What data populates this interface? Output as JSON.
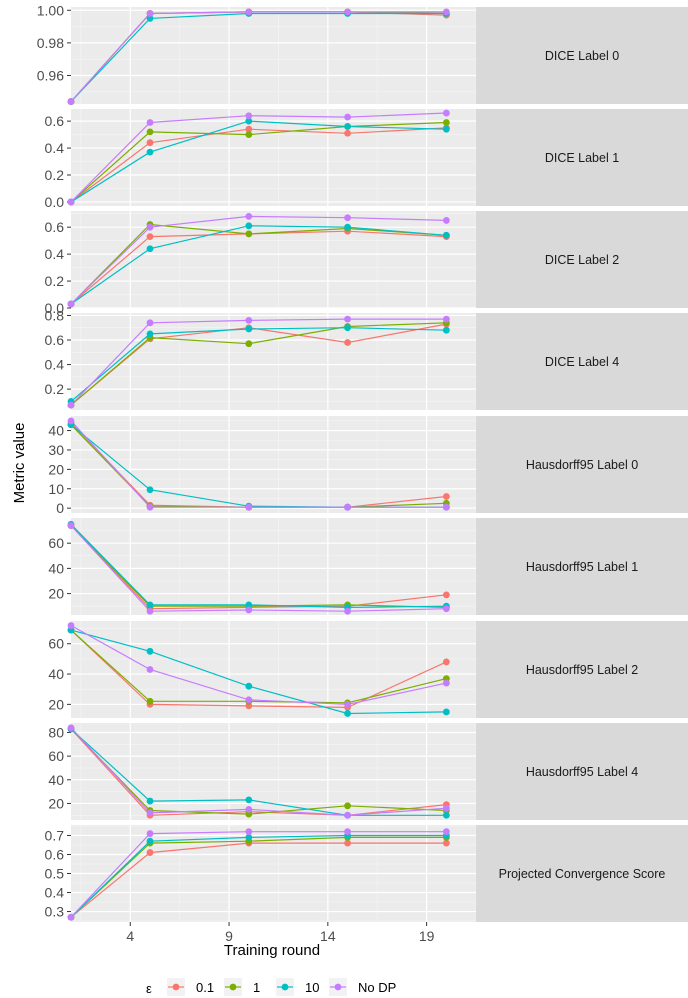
{
  "chart_data": {
    "type": "line",
    "x_label": "Training round",
    "y_label": "Metric value",
    "x_ticks": [
      4,
      9,
      14,
      19
    ],
    "x_range": [
      1.0,
      21.5
    ],
    "x": [
      1,
      5,
      10,
      15,
      20
    ],
    "legend": {
      "title": "ε",
      "position": "bottom",
      "entries": [
        {
          "label": "0.1",
          "color": "#F8766D"
        },
        {
          "label": "1",
          "color": "#7CAE00"
        },
        {
          "label": "10",
          "color": "#00BFC4"
        },
        {
          "label": "No DP",
          "color": "#C77CFF"
        }
      ]
    },
    "panels": [
      {
        "label": "DICE Label 0",
        "y_range": [
          0.9425,
          1.002
        ],
        "y_ticks": [
          0.96,
          0.98,
          1.0
        ],
        "y_tick_labels": [
          "0.96",
          "0.98",
          "1.00"
        ],
        "series": [
          {
            "name": "0.1",
            "values": [
              0.944,
              0.998,
              0.999,
              0.999,
              0.997
            ]
          },
          {
            "name": "1",
            "values": [
              0.944,
              0.998,
              0.999,
              0.999,
              0.998
            ]
          },
          {
            "name": "10",
            "values": [
              0.944,
              0.995,
              0.998,
              0.998,
              0.998
            ]
          },
          {
            "name": "No DP",
            "values": [
              0.944,
              0.998,
              0.999,
              0.999,
              0.999
            ]
          }
        ]
      },
      {
        "label": "DICE Label 1",
        "y_range": [
          -0.03,
          0.69
        ],
        "y_ticks": [
          0.0,
          0.2,
          0.4,
          0.6
        ],
        "y_tick_labels": [
          "0.0",
          "0.2",
          "0.4",
          "0.6"
        ],
        "series": [
          {
            "name": "0.1",
            "values": [
              0.0,
              0.44,
              0.54,
              0.51,
              0.55
            ]
          },
          {
            "name": "1",
            "values": [
              0.0,
              0.52,
              0.5,
              0.56,
              0.59
            ]
          },
          {
            "name": "10",
            "values": [
              0.0,
              0.37,
              0.6,
              0.56,
              0.54
            ]
          },
          {
            "name": "No DP",
            "values": [
              0.0,
              0.59,
              0.64,
              0.63,
              0.66
            ]
          }
        ]
      },
      {
        "label": "DICE Label 2",
        "y_range": [
          0.0,
          0.72
        ],
        "y_ticks": [
          0.0,
          0.2,
          0.4,
          0.6
        ],
        "y_tick_labels": [
          "0.0",
          "0.2",
          "0.4",
          "0.6"
        ],
        "series": [
          {
            "name": "0.1",
            "values": [
              0.03,
              0.53,
              0.55,
              0.57,
              0.53
            ]
          },
          {
            "name": "1",
            "values": [
              0.03,
              0.62,
              0.55,
              0.59,
              0.54
            ]
          },
          {
            "name": "10",
            "values": [
              0.03,
              0.44,
              0.61,
              0.6,
              0.54
            ]
          },
          {
            "name": "No DP",
            "values": [
              0.03,
              0.6,
              0.68,
              0.67,
              0.65
            ]
          }
        ]
      },
      {
        "label": "DICE Label 4",
        "y_range": [
          0.03,
          0.82
        ],
        "y_ticks": [
          0.2,
          0.4,
          0.6,
          0.8
        ],
        "y_tick_labels": [
          "0.2",
          "0.4",
          "0.6",
          "0.8"
        ],
        "series": [
          {
            "name": "0.1",
            "values": [
              0.07,
              0.61,
              0.7,
              0.58,
              0.73
            ]
          },
          {
            "name": "1",
            "values": [
              0.07,
              0.62,
              0.57,
              0.71,
              0.74
            ]
          },
          {
            "name": "10",
            "values": [
              0.1,
              0.65,
              0.69,
              0.7,
              0.68
            ]
          },
          {
            "name": "No DP",
            "values": [
              0.07,
              0.74,
              0.76,
              0.77,
              0.77
            ]
          }
        ]
      },
      {
        "label": "Hausdorff95 Label 0",
        "y_range": [
          -2.5,
          47.5
        ],
        "y_ticks": [
          0,
          10,
          20,
          30,
          40
        ],
        "y_tick_labels": [
          "0",
          "10",
          "20",
          "30",
          "40"
        ],
        "series": [
          {
            "name": "0.1",
            "values": [
              44.0,
              1.5,
              0.5,
              0.5,
              6.0
            ]
          },
          {
            "name": "1",
            "values": [
              43.0,
              1.0,
              0.5,
              0.5,
              2.5
            ]
          },
          {
            "name": "10",
            "values": [
              43.0,
              9.5,
              1.0,
              0.5,
              0.5
            ]
          },
          {
            "name": "No DP",
            "values": [
              45.0,
              0.5,
              0.5,
              0.5,
              0.5
            ]
          }
        ]
      },
      {
        "label": "Hausdorff95 Label 1",
        "y_range": [
          3.0,
          80.0
        ],
        "y_ticks": [
          20,
          40,
          60
        ],
        "y_tick_labels": [
          "20",
          "40",
          "60"
        ],
        "series": [
          {
            "name": "0.1",
            "values": [
              74.0,
              8.0,
              9.0,
              10.0,
              19.0
            ]
          },
          {
            "name": "1",
            "values": [
              74.0,
              10.0,
              10.0,
              11.0,
              9.0
            ]
          },
          {
            "name": "10",
            "values": [
              75.0,
              11.0,
              11.0,
              9.0,
              10.0
            ]
          },
          {
            "name": "No DP",
            "values": [
              74.0,
              6.0,
              7.0,
              6.0,
              8.0
            ]
          }
        ]
      },
      {
        "label": "Hausdorff95 Label 2",
        "y_range": [
          11.0,
          75.0
        ],
        "y_ticks": [
          20,
          40,
          60
        ],
        "y_tick_labels": [
          "20",
          "40",
          "60"
        ],
        "series": [
          {
            "name": "0.1",
            "values": [
              69.0,
              20.0,
              19.0,
              18.0,
              48.0
            ]
          },
          {
            "name": "1",
            "values": [
              69.0,
              22.0,
              22.0,
              21.0,
              37.0
            ]
          },
          {
            "name": "10",
            "values": [
              69.0,
              55.0,
              32.0,
              14.0,
              15.0
            ]
          },
          {
            "name": "No DP",
            "values": [
              72.0,
              43.0,
              23.0,
              20.0,
              34.0
            ]
          }
        ]
      },
      {
        "label": "Hausdorff95 Label 4",
        "y_range": [
          6.0,
          88.0
        ],
        "y_ticks": [
          20,
          40,
          60,
          80
        ],
        "y_tick_labels": [
          "20",
          "40",
          "60",
          "80"
        ],
        "series": [
          {
            "name": "0.1",
            "values": [
              83.0,
              10.0,
              13.0,
              10.0,
              19.0
            ]
          },
          {
            "name": "1",
            "values": [
              83.0,
              14.0,
              11.0,
              18.0,
              14.0
            ]
          },
          {
            "name": "10",
            "values": [
              83.0,
              22.0,
              23.0,
              10.0,
              10.0
            ]
          },
          {
            "name": "No DP",
            "values": [
              84.0,
              12.0,
              15.0,
              10.0,
              16.0
            ]
          }
        ]
      },
      {
        "label": "Projected Convergence Score",
        "y_range": [
          0.245,
          0.755
        ],
        "y_ticks": [
          0.3,
          0.4,
          0.5,
          0.6,
          0.7
        ],
        "y_tick_labels": [
          "0.3",
          "0.4",
          "0.5",
          "0.6",
          "0.7"
        ],
        "series": [
          {
            "name": "0.1",
            "values": [
              0.27,
              0.61,
              0.66,
              0.66,
              0.66
            ]
          },
          {
            "name": "1",
            "values": [
              0.27,
              0.66,
              0.67,
              0.69,
              0.69
            ]
          },
          {
            "name": "10",
            "values": [
              0.27,
              0.67,
              0.69,
              0.7,
              0.7
            ]
          },
          {
            "name": "No DP",
            "values": [
              0.27,
              0.71,
              0.72,
              0.72,
              0.72
            ]
          }
        ]
      }
    ]
  }
}
